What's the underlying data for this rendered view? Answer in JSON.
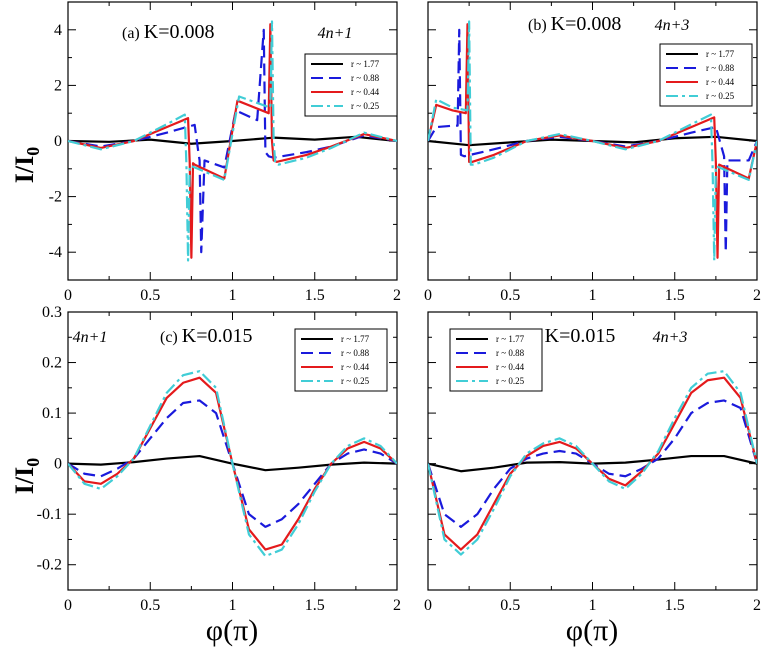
{
  "figure": {
    "xlabel": "φ(π)",
    "ylabel_main": "I/I",
    "ylabel_sub": "0"
  },
  "legend_entries": [
    "r ~ 1.77",
    "r ~ 0.88",
    "r ~ 0.44",
    "r ~ 0.25"
  ],
  "series_styles": [
    {
      "color": "#000000",
      "dash": ""
    },
    {
      "color": "#1a1adc",
      "dash": "12,6"
    },
    {
      "color": "#e41a1c",
      "dash": ""
    },
    {
      "color": "#41cdd6",
      "dash": "12,4,3,4"
    }
  ],
  "chart_data": [
    {
      "type": "line",
      "panel": "a",
      "label_prefix": "(a)",
      "title": "K=0.008",
      "tag": "4n+1",
      "xlim": [
        0,
        2
      ],
      "ylim": [
        -5,
        5
      ],
      "xticks": [
        "0",
        "0.5",
        "1",
        "1.5",
        "2"
      ],
      "yticks": [
        -4,
        -2,
        0,
        2,
        4
      ],
      "series": [
        {
          "name": "r ~ 1.77",
          "x": [
            0,
            0.25,
            0.5,
            0.75,
            1.0,
            1.25,
            1.5,
            1.75,
            2.0
          ],
          "y": [
            0,
            -0.03,
            0.05,
            -0.1,
            0,
            0.12,
            0.05,
            0.15,
            0
          ]
        },
        {
          "name": "r ~ 0.88",
          "x": [
            0,
            0.2,
            0.4,
            0.6,
            0.77,
            0.79,
            0.8,
            0.81,
            0.83,
            0.95,
            1.02,
            1.15,
            1.19,
            1.2,
            1.22,
            1.25,
            1.45,
            1.6,
            1.8,
            2.0
          ],
          "y": [
            0,
            -0.2,
            0,
            0.3,
            0.58,
            -0.3,
            -0.7,
            -4.0,
            -0.7,
            -0.95,
            1.1,
            0.75,
            4.0,
            -0.4,
            -0.55,
            -0.6,
            -0.4,
            -0.2,
            0.2,
            0
          ]
        },
        {
          "name": "r ~ 0.44",
          "x": [
            0,
            0.2,
            0.4,
            0.6,
            0.73,
            0.74,
            0.75,
            0.76,
            0.77,
            0.95,
            1.03,
            1.22,
            1.23,
            1.24,
            1.25,
            1.27,
            1.45,
            1.6,
            1.8,
            2.0
          ],
          "y": [
            0,
            -0.25,
            0,
            0.5,
            0.82,
            -0.8,
            -4.2,
            -0.8,
            -0.85,
            -1.35,
            1.45,
            1.0,
            4.2,
            0,
            -0.7,
            -0.75,
            -0.5,
            -0.2,
            0.25,
            0
          ]
        },
        {
          "name": "r ~ 0.25",
          "x": [
            0,
            0.2,
            0.4,
            0.6,
            0.71,
            0.72,
            0.73,
            0.74,
            0.75,
            0.95,
            1.04,
            1.23,
            1.24,
            1.25,
            1.26,
            1.28,
            1.45,
            1.6,
            1.8,
            2.0
          ],
          "y": [
            0,
            -0.3,
            0,
            0.6,
            0.95,
            -0.9,
            -4.3,
            -0.9,
            -0.9,
            -1.4,
            1.6,
            1.2,
            4.3,
            0,
            -0.8,
            -0.85,
            -0.6,
            -0.25,
            0.3,
            0
          ]
        }
      ]
    },
    {
      "type": "line",
      "panel": "b",
      "label_prefix": "(b)",
      "title": "K=0.008",
      "tag": "4n+3",
      "xlim": [
        0,
        2
      ],
      "ylim": [
        -5,
        5
      ],
      "xticks": [
        "0",
        "0.5",
        "1",
        "1.5",
        "2"
      ],
      "yticks": [
        -4,
        -2,
        0,
        2,
        4
      ],
      "series": [
        {
          "name": "r ~ 1.77",
          "x": [
            0,
            0.25,
            0.5,
            0.75,
            1.0,
            1.25,
            1.5,
            1.75,
            2.0
          ],
          "y": [
            0,
            -0.15,
            -0.05,
            0.05,
            0,
            -0.05,
            0.1,
            0.15,
            0
          ]
        },
        {
          "name": "r ~ 0.88",
          "x": [
            0,
            0.05,
            0.15,
            0.18,
            0.19,
            0.2,
            0.22,
            0.4,
            0.6,
            0.8,
            1.0,
            1.2,
            1.4,
            1.6,
            1.75,
            1.8,
            1.81,
            1.82,
            1.85,
            1.95,
            2.0
          ],
          "y": [
            0,
            0.5,
            0.55,
            0.55,
            4.0,
            -0.5,
            -0.55,
            -0.3,
            0,
            0.15,
            0,
            -0.2,
            0,
            0.3,
            0.5,
            -0.55,
            -4.0,
            -0.7,
            -0.7,
            -0.7,
            0
          ]
        },
        {
          "name": "r ~ 0.44",
          "x": [
            0,
            0.05,
            0.15,
            0.23,
            0.24,
            0.25,
            0.27,
            0.4,
            0.6,
            0.8,
            1.0,
            1.2,
            1.4,
            1.6,
            1.74,
            1.75,
            1.76,
            1.77,
            1.95,
            2.0
          ],
          "y": [
            0,
            1.3,
            1.1,
            1.0,
            4.2,
            -0.75,
            -0.75,
            -0.5,
            0,
            0.2,
            0,
            -0.25,
            0,
            0.5,
            0.85,
            -0.8,
            -4.2,
            -0.85,
            -1.35,
            0
          ]
        },
        {
          "name": "r ~ 0.25",
          "x": [
            0,
            0.05,
            0.15,
            0.24,
            0.25,
            0.26,
            0.28,
            0.4,
            0.6,
            0.8,
            1.0,
            1.2,
            1.4,
            1.6,
            1.72,
            1.73,
            1.74,
            1.75,
            1.95,
            2.0
          ],
          "y": [
            0,
            1.5,
            1.2,
            1.1,
            4.3,
            -0.85,
            -0.85,
            -0.6,
            0,
            0.25,
            0,
            -0.3,
            0,
            0.6,
            0.95,
            -0.9,
            -4.3,
            -0.9,
            -1.4,
            0
          ]
        }
      ]
    },
    {
      "type": "line",
      "panel": "c",
      "label_prefix": "(c)",
      "title": "K=0.015",
      "tag": "4n+1",
      "xlim": [
        0,
        2
      ],
      "ylim": [
        -0.25,
        0.3
      ],
      "xticks": [
        "0",
        "0.5",
        "1",
        "1.5",
        "2"
      ],
      "yticks": [
        -0.2,
        -0.1,
        0,
        0.1,
        0.2,
        0.3
      ],
      "series": [
        {
          "name": "r ~ 1.77",
          "x": [
            0,
            0.2,
            0.4,
            0.6,
            0.8,
            1.0,
            1.2,
            1.4,
            1.6,
            1.8,
            2.0
          ],
          "y": [
            0,
            -0.002,
            0.003,
            0.01,
            0.015,
            0,
            -0.013,
            -0.008,
            -0.002,
            0.002,
            0
          ]
        },
        {
          "name": "r ~ 0.88",
          "x": [
            0,
            0.1,
            0.2,
            0.3,
            0.4,
            0.5,
            0.6,
            0.7,
            0.8,
            0.9,
            1.0,
            1.1,
            1.2,
            1.3,
            1.4,
            1.5,
            1.6,
            1.7,
            1.8,
            1.9,
            2.0
          ],
          "y": [
            0,
            -0.02,
            -0.025,
            -0.01,
            0.01,
            0.05,
            0.09,
            0.12,
            0.125,
            0.1,
            0,
            -0.1,
            -0.125,
            -0.11,
            -0.08,
            -0.04,
            0,
            0.02,
            0.028,
            0.02,
            0
          ]
        },
        {
          "name": "r ~ 0.44",
          "x": [
            0,
            0.1,
            0.2,
            0.3,
            0.4,
            0.5,
            0.6,
            0.7,
            0.8,
            0.9,
            1.0,
            1.1,
            1.2,
            1.3,
            1.4,
            1.5,
            1.6,
            1.7,
            1.8,
            1.9,
            2.0
          ],
          "y": [
            0,
            -0.035,
            -0.04,
            -0.02,
            0.01,
            0.07,
            0.13,
            0.16,
            0.17,
            0.14,
            0,
            -0.13,
            -0.17,
            -0.16,
            -0.11,
            -0.05,
            0,
            0.03,
            0.043,
            0.03,
            0
          ]
        },
        {
          "name": "r ~ 0.25",
          "x": [
            0,
            0.1,
            0.2,
            0.3,
            0.4,
            0.5,
            0.6,
            0.7,
            0.8,
            0.9,
            1.0,
            1.1,
            1.2,
            1.3,
            1.4,
            1.5,
            1.6,
            1.7,
            1.8,
            1.9,
            2.0
          ],
          "y": [
            0,
            -0.04,
            -0.05,
            -0.025,
            0.01,
            0.075,
            0.14,
            0.175,
            0.183,
            0.15,
            0,
            -0.14,
            -0.183,
            -0.17,
            -0.12,
            -0.055,
            0,
            0.035,
            0.05,
            0.035,
            0
          ]
        }
      ]
    },
    {
      "type": "line",
      "panel": "d",
      "label_prefix": "(d)",
      "title": "K=0.015",
      "tag": "4n+3",
      "xlim": [
        0,
        2
      ],
      "ylim": [
        -0.25,
        0.3
      ],
      "xticks": [
        "0",
        "0.5",
        "1",
        "1.5",
        "2"
      ],
      "yticks": [
        -0.2,
        -0.1,
        0,
        0.1,
        0.2,
        0.3
      ],
      "series": [
        {
          "name": "r ~ 1.77",
          "x": [
            0,
            0.2,
            0.4,
            0.6,
            0.8,
            1.0,
            1.2,
            1.4,
            1.6,
            1.8,
            2.0
          ],
          "y": [
            0,
            -0.015,
            -0.008,
            0.002,
            0.003,
            0,
            0.002,
            0.008,
            0.015,
            0.015,
            0
          ]
        },
        {
          "name": "r ~ 0.88",
          "x": [
            0,
            0.1,
            0.2,
            0.3,
            0.4,
            0.5,
            0.6,
            0.7,
            0.8,
            0.9,
            1.0,
            1.1,
            1.2,
            1.3,
            1.4,
            1.5,
            1.6,
            1.7,
            1.8,
            1.9,
            2.0
          ],
          "y": [
            0,
            -0.1,
            -0.125,
            -0.1,
            -0.05,
            -0.01,
            0.01,
            0.02,
            0.025,
            0.02,
            0,
            -0.02,
            -0.025,
            -0.01,
            0.01,
            0.05,
            0.1,
            0.12,
            0.125,
            0.11,
            0
          ]
        },
        {
          "name": "r ~ 0.44",
          "x": [
            0,
            0.1,
            0.2,
            0.3,
            0.4,
            0.5,
            0.6,
            0.7,
            0.8,
            0.9,
            1.0,
            1.1,
            1.2,
            1.3,
            1.4,
            1.5,
            1.6,
            1.7,
            1.8,
            1.9,
            2.0
          ],
          "y": [
            0,
            -0.14,
            -0.17,
            -0.14,
            -0.08,
            -0.02,
            0.015,
            0.035,
            0.043,
            0.03,
            0,
            -0.03,
            -0.043,
            -0.015,
            0.02,
            0.08,
            0.14,
            0.165,
            0.17,
            0.13,
            0
          ]
        },
        {
          "name": "r ~ 0.25",
          "x": [
            0,
            0.1,
            0.2,
            0.3,
            0.4,
            0.5,
            0.6,
            0.7,
            0.8,
            0.9,
            1.0,
            1.1,
            1.2,
            1.3,
            1.4,
            1.5,
            1.6,
            1.7,
            1.8,
            1.9,
            2.0
          ],
          "y": [
            0,
            -0.15,
            -0.18,
            -0.15,
            -0.09,
            -0.025,
            0.02,
            0.04,
            0.05,
            0.035,
            0,
            -0.035,
            -0.05,
            -0.02,
            0.025,
            0.09,
            0.15,
            0.178,
            0.183,
            0.14,
            0
          ]
        }
      ]
    }
  ]
}
